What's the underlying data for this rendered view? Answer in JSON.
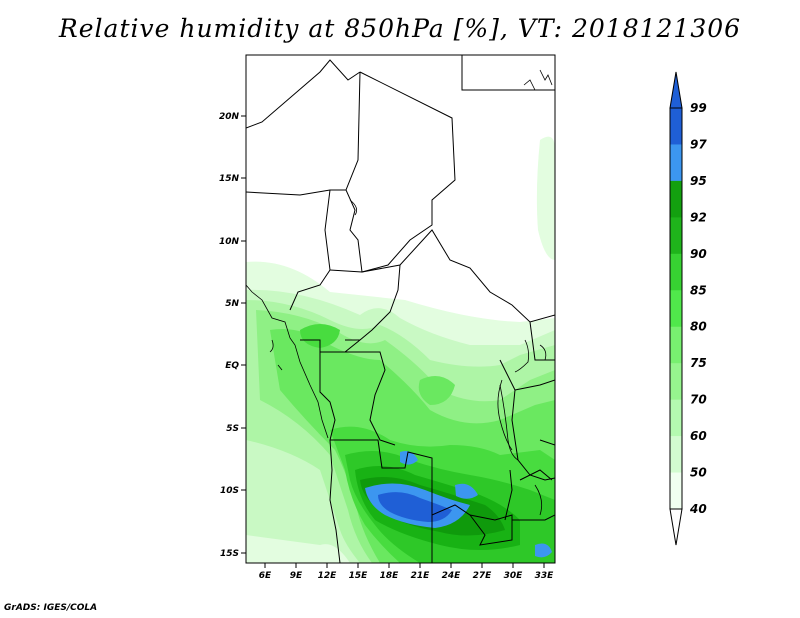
{
  "title": "Relative humidity at 850hPa [%], VT: 2018121306",
  "credit": "GrADS: IGES/COLA",
  "map": {
    "lon_ticks": [
      "6E",
      "9E",
      "12E",
      "15E",
      "18E",
      "21E",
      "24E",
      "27E",
      "30E",
      "33E"
    ],
    "lat_ticks": [
      "20N",
      "15N",
      "10N",
      "5N",
      "EQ",
      "5S",
      "10S",
      "15S"
    ]
  },
  "colorbar": {
    "labels": [
      "99",
      "97",
      "95",
      "92",
      "90",
      "85",
      "80",
      "75",
      "70",
      "60",
      "50",
      "40"
    ],
    "colors": [
      "#1f5fd6",
      "#3c96f0",
      "#13a00f",
      "#1fb41b",
      "#37d232",
      "#50e84b",
      "#78f070",
      "#96f58e",
      "#b4fab0",
      "#d2fcd0",
      "#f0fff0"
    ],
    "top_color": "#1f5fd6",
    "bottom_color": "#ffffff"
  }
}
